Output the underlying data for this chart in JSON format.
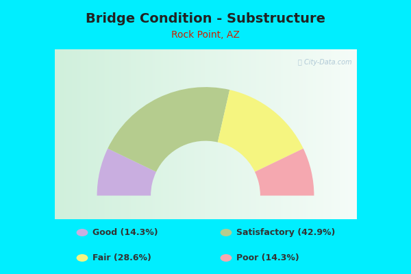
{
  "title": "Bridge Condition - Substructure",
  "subtitle": "Rock Point, AZ",
  "title_color": "#222222",
  "subtitle_color": "#cc2200",
  "background_color": "#00eeff",
  "chart_bg_left": "#d0eedc",
  "chart_bg_right": "#e8f8f0",
  "categories": [
    "Good",
    "Satisfactory",
    "Fair",
    "Poor"
  ],
  "values": [
    14.3,
    42.9,
    28.6,
    14.3
  ],
  "colors": [
    "#c9aee0",
    "#b5cc8e",
    "#f5f580",
    "#f5a8b0"
  ],
  "legend_left_labels": [
    "Good (14.3%)",
    "Fair (28.6%)"
  ],
  "legend_left_colors": [
    "#c9aee0",
    "#f5f580"
  ],
  "legend_right_labels": [
    "Satisfactory (42.9%)",
    "Poor (14.3%)"
  ],
  "legend_right_colors": [
    "#b5cc8e",
    "#f5a8b0"
  ],
  "watermark": "Ⓢ City-Data.com"
}
